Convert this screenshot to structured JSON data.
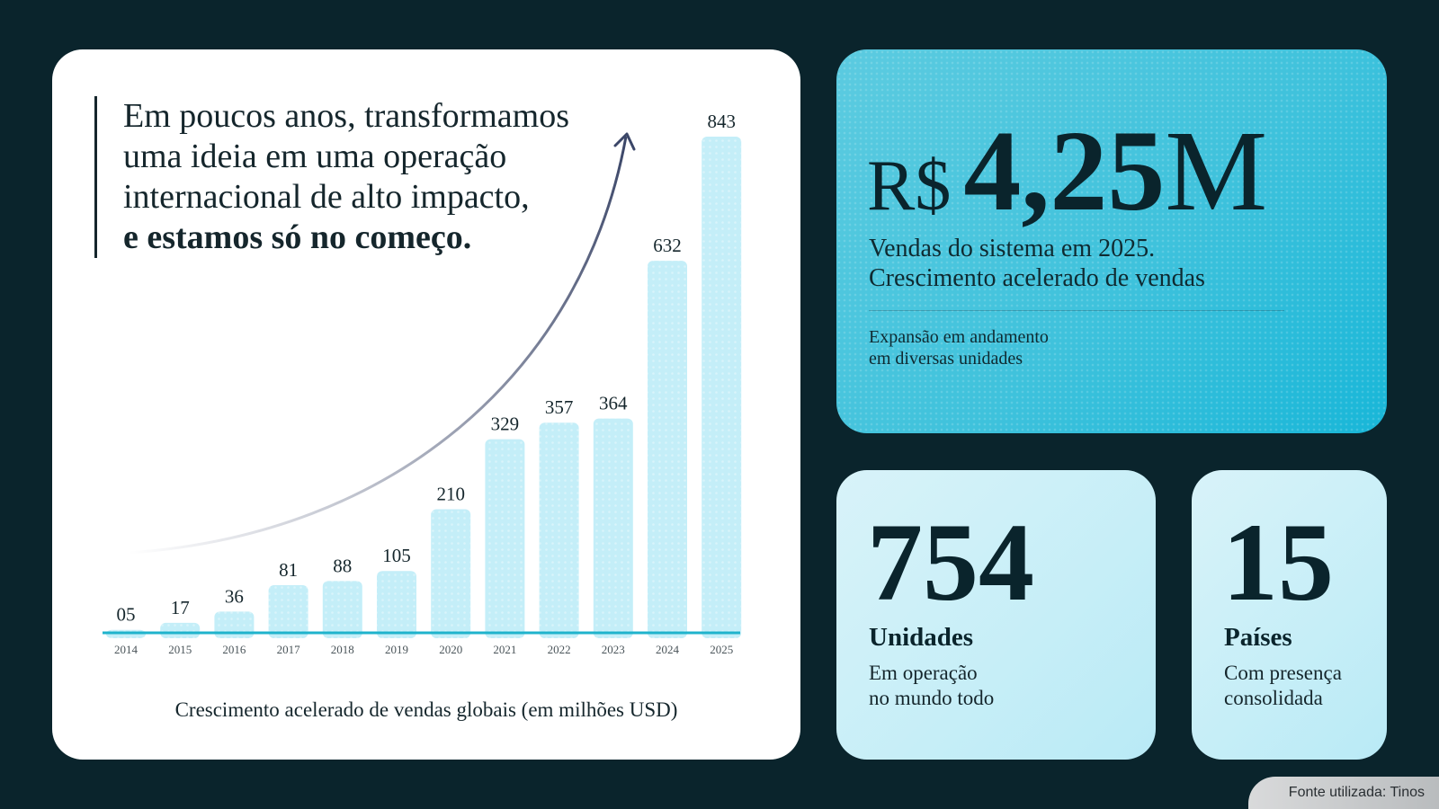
{
  "quote": {
    "line1": "Em poucos anos, transformamos",
    "line2": "uma ideia em uma operação",
    "line3": "internacional de alto impacto,",
    "line4": "e estamos só no começo."
  },
  "chart_data": {
    "type": "bar",
    "categories": [
      "2014",
      "2015",
      "2016",
      "2017",
      "2018",
      "2019",
      "2020",
      "2021",
      "2022",
      "2023",
      "2024",
      "2025"
    ],
    "values": [
      5,
      17,
      36,
      81,
      88,
      105,
      210,
      329,
      357,
      364,
      632,
      843
    ],
    "value_labels": [
      "05",
      "17",
      "36",
      "81",
      "88",
      "105",
      "210",
      "329",
      "357",
      "364",
      "632",
      "843"
    ],
    "title": "",
    "caption": "Crescimento acelerado de vendas globais (em milhões USD)",
    "xlabel": "",
    "ylabel": "",
    "ylim": [
      0,
      843
    ],
    "grid": false,
    "bar_color": "#c4eef8",
    "axis_color": "#1fb3cc",
    "arrow_color": "#3b4668"
  },
  "sales": {
    "currency": "R$",
    "amount": "4,25",
    "suffix": "M",
    "desc_line1": "Vendas do sistema em 2025.",
    "desc_line2": "Crescimento acelerado de vendas",
    "note_line1": "Expansão em andamento",
    "note_line2": "em diversas unidades"
  },
  "units": {
    "value": "754",
    "label": "Unidades",
    "desc_line1": "Em operação",
    "desc_line2": "no mundo todo"
  },
  "countries": {
    "value": "15",
    "label": "Países",
    "desc_line1": "Com presença",
    "desc_line2": "consolidada"
  },
  "font_note": "Fonte utilizada: Tinos"
}
